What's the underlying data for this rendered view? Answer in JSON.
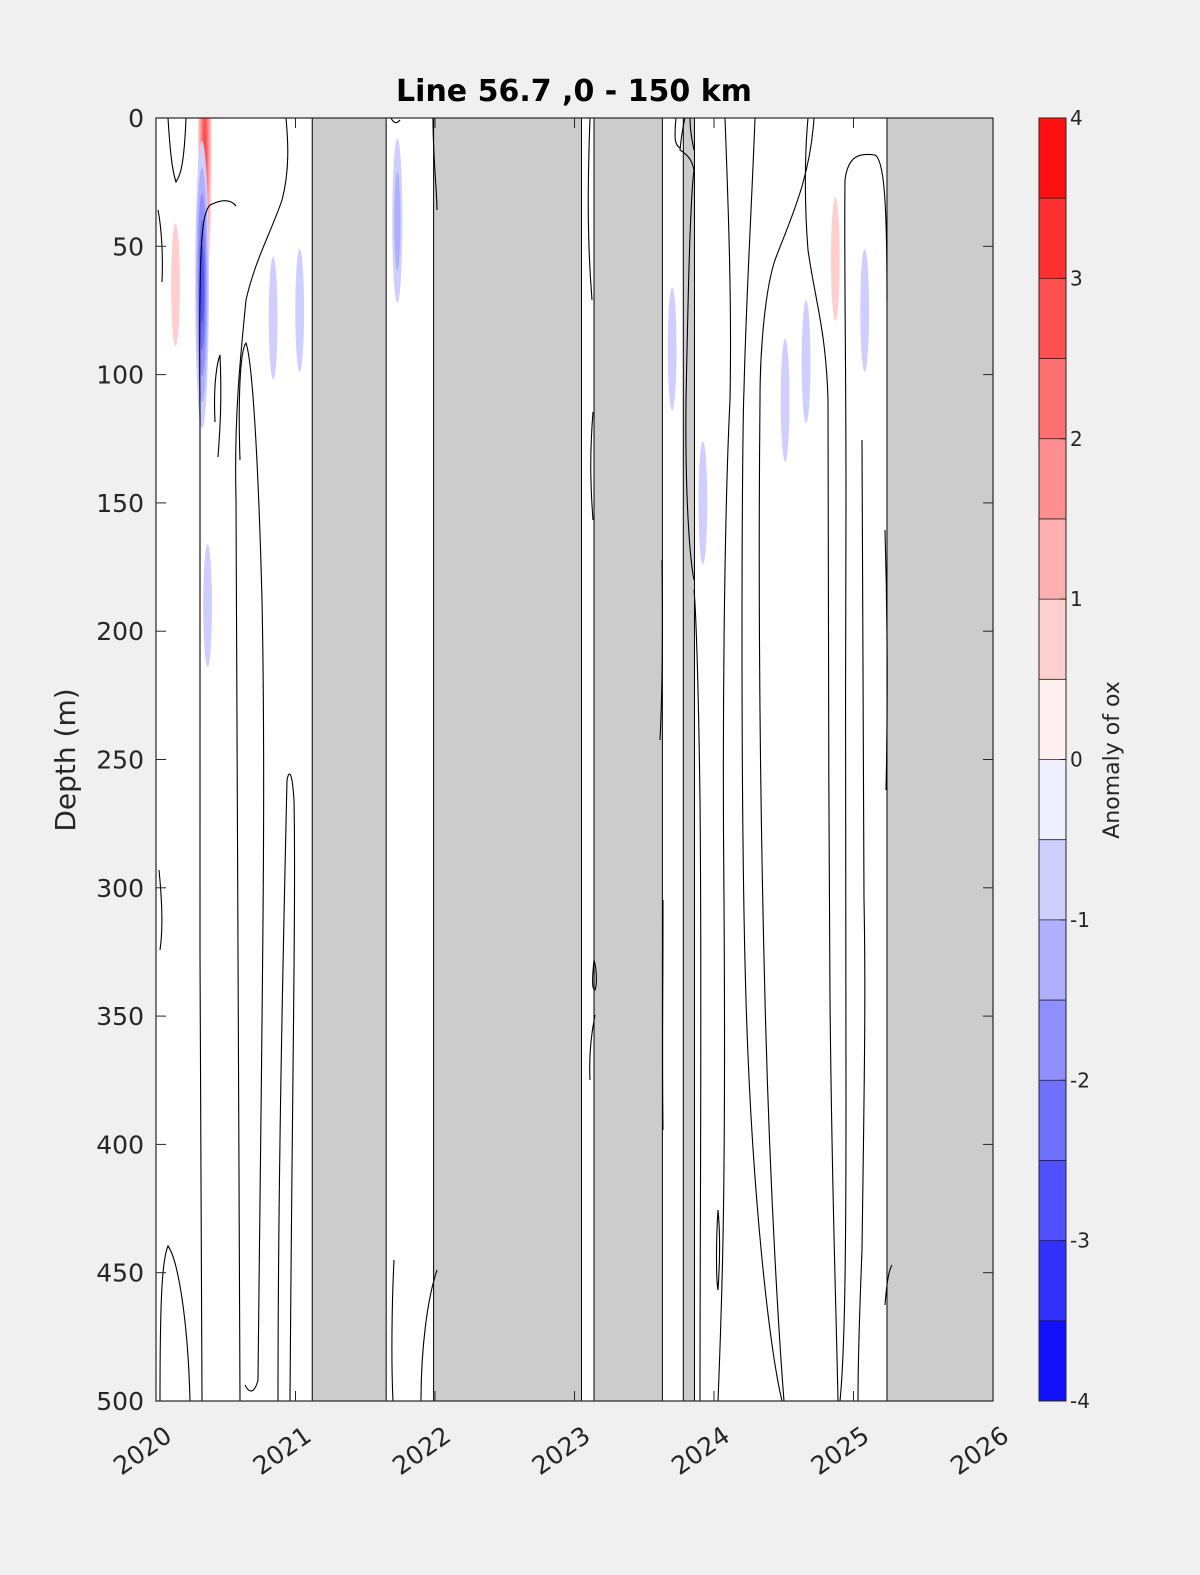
{
  "chart_data": {
    "type": "heatmap",
    "title": "Line 56.7 ,0 - 150 km",
    "xlabel": "",
    "ylabel": "Depth (m)",
    "xlim": [
      2020,
      2026
    ],
    "ylim": [
      0,
      500
    ],
    "y_reversed": true,
    "x_tick_labels": [
      "2020",
      "2021",
      "2022",
      "2023",
      "2024",
      "2025",
      "2026"
    ],
    "y_tick_labels": [
      "0",
      "50",
      "100",
      "150",
      "200",
      "250",
      "300",
      "350",
      "400",
      "450",
      "500"
    ],
    "colorbar": {
      "label": "Anomaly of ox",
      "range": [
        -4,
        4
      ],
      "levels_step": 0.5,
      "tick_labels": [
        "4",
        "3",
        "2",
        "1",
        "0",
        "-1",
        "-2",
        "-3",
        "-4"
      ],
      "colormap": "blue-white-red"
    },
    "no_data_color": "#cccccc",
    "no_data_periods": [
      [
        2021.12,
        2021.65
      ],
      [
        2021.99,
        2023.05
      ],
      [
        2023.14,
        2023.63
      ],
      [
        2023.78,
        2023.86
      ],
      [
        2025.24,
        2026.0
      ]
    ],
    "anomalies": [
      {
        "x": 2020.35,
        "depth": 12,
        "value": 3.0
      },
      {
        "x": 2020.14,
        "depth": 65,
        "value": 1.0
      },
      {
        "x": 2020.33,
        "depth": 65,
        "value": -3.0
      },
      {
        "x": 2020.37,
        "depth": 190,
        "value": -1.0
      },
      {
        "x": 2020.84,
        "depth": 78,
        "value": -1.0
      },
      {
        "x": 2021.03,
        "depth": 75,
        "value": -1.0
      },
      {
        "x": 2021.73,
        "depth": 40,
        "value": -1.5
      },
      {
        "x": 2023.7,
        "depth": 90,
        "value": -1.0
      },
      {
        "x": 2023.92,
        "depth": 150,
        "value": -1.0
      },
      {
        "x": 2024.51,
        "depth": 110,
        "value": -1.0
      },
      {
        "x": 2024.66,
        "depth": 95,
        "value": -1.0
      },
      {
        "x": 2024.87,
        "depth": 55,
        "value": 1.0
      },
      {
        "x": 2025.08,
        "depth": 75,
        "value": -1.0
      }
    ]
  }
}
